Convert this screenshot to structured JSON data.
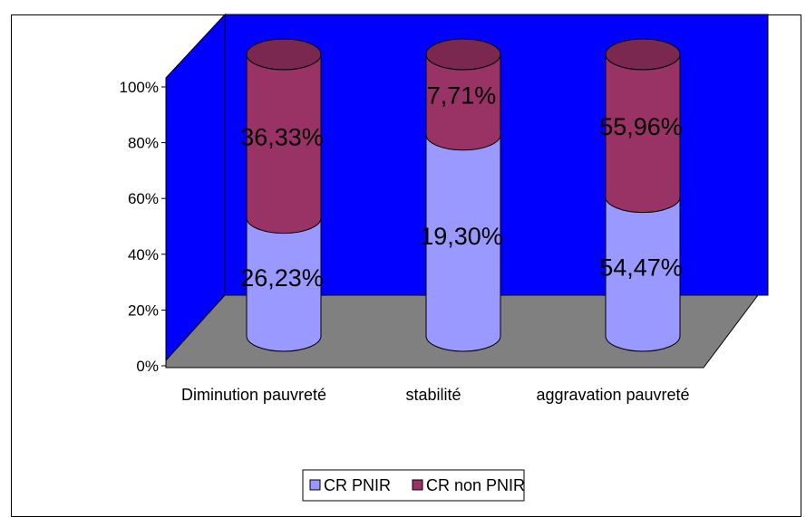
{
  "chart_data": {
    "type": "bar",
    "style": "stacked-100-percent-3d-cylinder",
    "categories": [
      "Diminution pauvreté",
      "stabilité",
      "aggravation pauvreté"
    ],
    "series": [
      {
        "name": "CR  PNIR",
        "values": [
          26.23,
          19.3,
          54.47
        ],
        "labels": [
          "26,23%",
          "19,30%",
          "54,47%"
        ],
        "color": "#9999ff"
      },
      {
        "name": "CR non PNIR",
        "values": [
          36.33,
          7.71,
          55.96
        ],
        "labels": [
          "36,33%",
          "7,71%",
          "55,96%"
        ],
        "color": "#993366"
      }
    ],
    "shares_percent": [
      [
        41.93,
        58.07
      ],
      [
        71.45,
        28.55
      ],
      [
        49.33,
        50.67
      ]
    ],
    "y_ticks": [
      "0%",
      "20%",
      "40%",
      "60%",
      "80%",
      "100%"
    ],
    "ylim": [
      0,
      100
    ],
    "wall_color": "#0000ff",
    "floor_color": "#808080",
    "legend": {
      "position": "bottom"
    },
    "title": "",
    "xlabel": "",
    "ylabel": ""
  }
}
